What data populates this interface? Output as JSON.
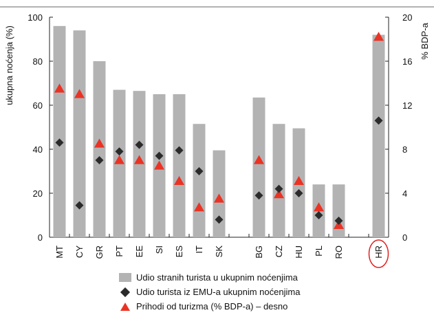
{
  "chart_data": {
    "type": "bar",
    "categories": [
      "MT",
      "CY",
      "GR",
      "PT",
      "EE",
      "SI",
      "ES",
      "IT",
      "SK",
      "",
      "BG",
      "CZ",
      "HU",
      "PL",
      "RO",
      "",
      "HR"
    ],
    "highlighted_category": "HR",
    "series": [
      {
        "name": "Udio stranih turista u ukupnim noćenjima",
        "kind": "bar",
        "axis": "left",
        "values": [
          96,
          94,
          80,
          67,
          66.5,
          65,
          65,
          51.5,
          39.5,
          null,
          63.5,
          51.5,
          49.5,
          24,
          24,
          null,
          92
        ]
      },
      {
        "name": "Udio turista iz EMU-a ukupnim noćenjima",
        "kind": "diamond",
        "axis": "left",
        "values": [
          43,
          14.5,
          35,
          39,
          42,
          37,
          39.5,
          30,
          8,
          null,
          19,
          22,
          20,
          10,
          7.5,
          null,
          53
        ]
      },
      {
        "name": "Prihodi od turizma (% BDP-a) – desno",
        "kind": "triangle",
        "axis": "right",
        "values": [
          13.5,
          13,
          8.5,
          7,
          7,
          6.5,
          5.1,
          2.7,
          3.5,
          null,
          7,
          3.9,
          5.1,
          2.7,
          1.1,
          null,
          18.2
        ]
      }
    ],
    "ylabel": "ukupna noćenja (%)",
    "y2label": "% BDP-a",
    "ylim": [
      0,
      100
    ],
    "y2lim": [
      0,
      20
    ],
    "yticks": [
      0,
      20,
      40,
      60,
      80,
      100
    ],
    "y2ticks": [
      0,
      4,
      8,
      12,
      16,
      20
    ],
    "colors": {
      "bar": "#b3b3b3",
      "diamond": "#2b2b2b",
      "triangle": "#ea3324",
      "highlight": "#e02020"
    },
    "legend_position": "bottom"
  }
}
